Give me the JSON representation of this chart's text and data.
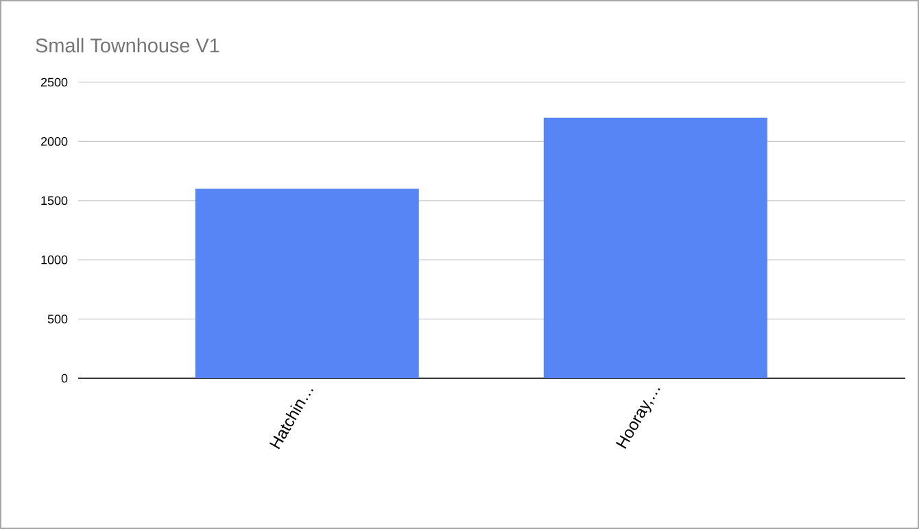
{
  "chart_data": {
    "type": "bar",
    "title": "Small Townhouse V1",
    "categories": [
      "Hatchin…",
      "Hooray,…"
    ],
    "values": [
      1600,
      2200
    ],
    "color": "#5885f5",
    "ylim": [
      0,
      2500
    ],
    "yticks": [
      0,
      500,
      1000,
      1500,
      2000,
      2500
    ],
    "grid": "y"
  }
}
